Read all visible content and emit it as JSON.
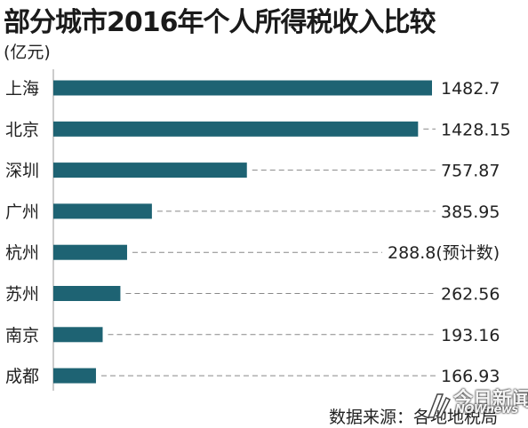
{
  "chart_data": {
    "type": "bar",
    "orientation": "horizontal",
    "title": "部分城市2016年个人所得税收入比较",
    "unit": "(亿元)",
    "categories": [
      "上海",
      "北京",
      "深圳",
      "广州",
      "杭州",
      "苏州",
      "南京",
      "成都"
    ],
    "values": [
      1482.7,
      1428.15,
      757.87,
      385.95,
      288.8,
      262.56,
      193.16,
      166.93
    ],
    "value_labels": [
      "1482.7",
      "1428.15",
      "757.87",
      "385.95",
      "288.8(预计数)",
      "262.56",
      "193.16",
      "166.93"
    ],
    "xlim": [
      0,
      1482.7
    ],
    "grid": false,
    "legend": "none",
    "bar_color": "#1e6373",
    "leader_color": "#888888"
  },
  "source": "数据来源：各地地税局",
  "watermark": {
    "name": "今日新闻",
    "sub": "NOWnews"
  }
}
